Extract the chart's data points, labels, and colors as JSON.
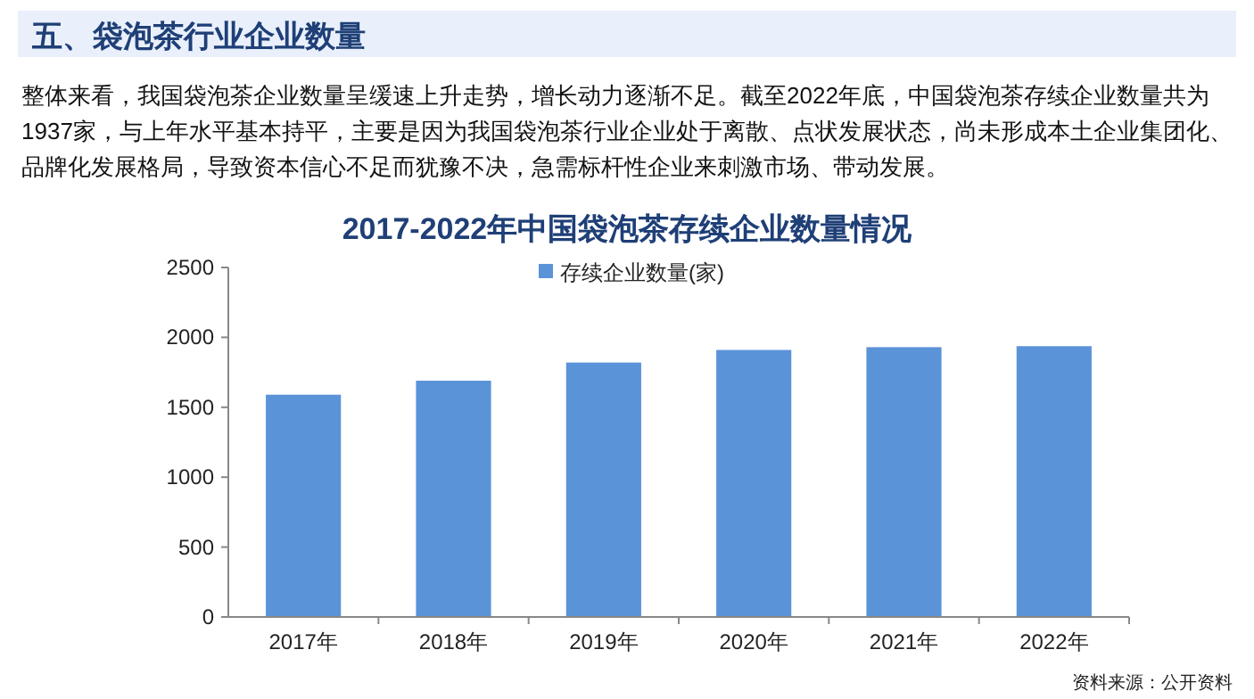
{
  "chart_data": {
    "type": "bar",
    "title": "2017-2022年中国袋泡茶存续企业数量情况",
    "annotations": [
      "五、袋泡茶行业企业数量",
      "整体来看，我国袋泡茶企业数量呈缓速上升走势，增长动力逐渐不足。截至2022年底，中国袋泡茶存续企业数量共为1937家，与上年水平基本持平，主要是因为我国袋泡茶行业企业处于离散、点状发展状态，尚未形成本土企业集团化、品牌化发展格局，导致资本信心不足而犹豫不决，急需标杆性企业来刺激市场、带动发展。",
      "资料来源：公开资料"
    ],
    "categories": [
      "2017年",
      "2018年",
      "2019年",
      "2020年",
      "2021年",
      "2022年"
    ],
    "series": [
      {
        "name": "存续企业数量(家)",
        "color": "#5b93d9",
        "values": [
          1590,
          1690,
          1820,
          1910,
          1930,
          1937
        ]
      }
    ],
    "ylim": [
      0,
      2500
    ],
    "yticks": [
      0,
      500,
      1000,
      1500,
      2000,
      2500
    ],
    "grid": false,
    "legend": "top"
  }
}
